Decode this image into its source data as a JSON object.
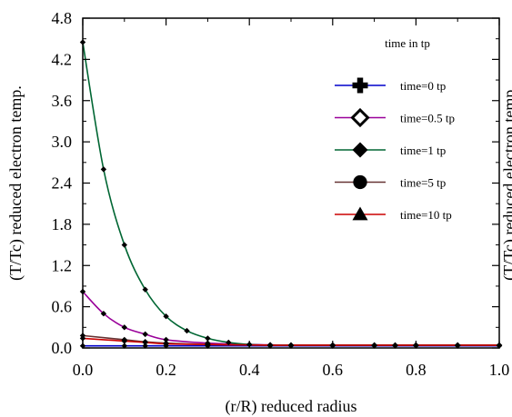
{
  "chart_data": {
    "type": "line",
    "title": "",
    "xlabel": "(r/R) reduced radius",
    "ylabel": "(T/Tc) reduced electron temp.",
    "ylabel_right": "(T/Tc) reduced electron temp.",
    "xlim": [
      0.0,
      1.0
    ],
    "ylim": [
      0.0,
      4.8
    ],
    "x_ticks": [
      "0.0",
      "0.2",
      "0.4",
      "0.6",
      "0.8",
      "1.0"
    ],
    "y_ticks": [
      "0.0",
      "0.6",
      "1.2",
      "1.8",
      "2.4",
      "3.0",
      "3.6",
      "4.2",
      "4.8"
    ],
    "grid": false,
    "legend_title": "time in tp",
    "legend_position": "top-right",
    "series": [
      {
        "name": "time=0 tp",
        "color": "#0000cc",
        "marker": "plus",
        "x": [
          0,
          0.1,
          0.15,
          0.2,
          0.3,
          0.45,
          0.5,
          0.6,
          0.7,
          0.75,
          0.8,
          0.9,
          1.0
        ],
        "y": [
          0.03,
          0.03,
          0.03,
          0.03,
          0.03,
          0.03,
          0.03,
          0.03,
          0.03,
          0.03,
          0.03,
          0.03,
          0.03
        ]
      },
      {
        "name": "time=0.5 tp",
        "color": "#990099",
        "marker": "diamond-open",
        "x": [
          0,
          0.05,
          0.1,
          0.15,
          0.2,
          0.3,
          0.4,
          0.45,
          0.5,
          0.6,
          0.7,
          0.8,
          0.9,
          1.0
        ],
        "y": [
          0.82,
          0.5,
          0.3,
          0.2,
          0.12,
          0.07,
          0.05,
          0.045,
          0.04,
          0.04,
          0.04,
          0.04,
          0.04,
          0.04
        ]
      },
      {
        "name": "time=1 tp",
        "color": "#006633",
        "marker": "diamond",
        "x": [
          0,
          0.05,
          0.1,
          0.15,
          0.2,
          0.25,
          0.3,
          0.35,
          0.4,
          0.45,
          0.5,
          0.6,
          0.7,
          0.75,
          0.8,
          0.9,
          1.0
        ],
        "y": [
          4.45,
          2.6,
          1.5,
          0.85,
          0.46,
          0.25,
          0.14,
          0.08,
          0.05,
          0.04,
          0.04,
          0.04,
          0.04,
          0.04,
          0.04,
          0.04,
          0.04
        ]
      },
      {
        "name": "time=5 tp",
        "color": "#663333",
        "marker": "circle",
        "x": [
          0,
          0.1,
          0.15,
          0.2,
          0.3,
          0.45,
          0.5,
          0.6,
          0.7,
          0.75,
          0.8,
          0.9,
          1.0
        ],
        "y": [
          0.18,
          0.12,
          0.09,
          0.07,
          0.05,
          0.04,
          0.04,
          0.04,
          0.04,
          0.04,
          0.04,
          0.04,
          0.04
        ]
      },
      {
        "name": "time=10 tp",
        "color": "#cc0000",
        "marker": "triangle",
        "x": [
          0,
          0.1,
          0.15,
          0.2,
          0.3,
          0.45,
          0.5,
          0.6,
          0.7,
          0.75,
          0.8,
          0.9,
          1.0
        ],
        "y": [
          0.14,
          0.1,
          0.08,
          0.06,
          0.05,
          0.04,
          0.04,
          0.04,
          0.04,
          0.04,
          0.04,
          0.04,
          0.04
        ]
      }
    ]
  }
}
